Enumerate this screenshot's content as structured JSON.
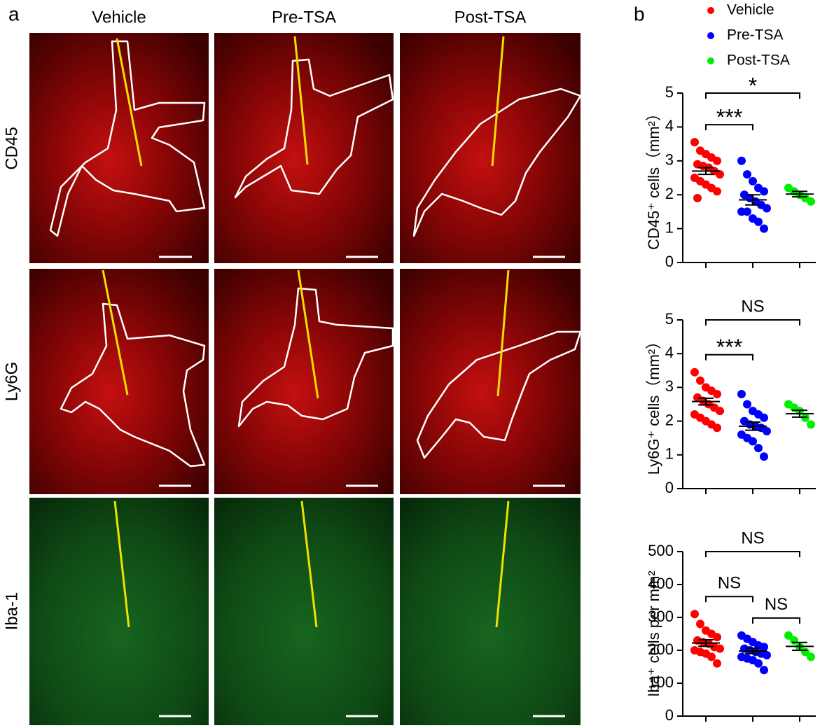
{
  "panel_a": {
    "label": "a",
    "columns": [
      "Vehicle",
      "Pre-TSA",
      "Post-TSA"
    ],
    "rows": [
      "CD45",
      "Ly6G",
      "Iba-1"
    ]
  },
  "panel_b": {
    "label": "b"
  },
  "chart_data": [
    {
      "type": "dotplot",
      "y_label": "CD45⁺ cells（mm²）",
      "ylim": [
        0,
        5
      ],
      "yticks": [
        0,
        1,
        2,
        3,
        4,
        5
      ],
      "series": [
        {
          "name": "Vehicle",
          "color": "#ff0000",
          "values": [
            3.55,
            3.3,
            3.2,
            3.1,
            3.0,
            2.9,
            2.85,
            2.8,
            2.7,
            2.6,
            2.5,
            2.4,
            2.3,
            2.2,
            2.1,
            1.9
          ],
          "mean": 2.7,
          "sem": 0.1
        },
        {
          "name": "Pre-TSA",
          "color": "#0000ff",
          "values": [
            3.0,
            2.6,
            2.4,
            2.2,
            2.1,
            2.0,
            1.9,
            1.8,
            1.7,
            1.6,
            1.5,
            1.5,
            1.3,
            1.2,
            1.0
          ],
          "mean": 1.85,
          "sem": 0.15
        },
        {
          "name": "Post-TSA",
          "color": "#00ee00",
          "values": [
            2.2,
            2.1,
            2.0,
            1.9,
            1.8
          ],
          "mean": 2.02,
          "sem": 0.08
        }
      ],
      "comparisons": [
        {
          "groups": [
            0,
            2
          ],
          "label": "*"
        },
        {
          "groups": [
            0,
            1
          ],
          "label": "***"
        }
      ]
    },
    {
      "type": "dotplot",
      "y_label": "Ly6G⁺ cells（mm²）",
      "ylim": [
        0,
        5
      ],
      "yticks": [
        0,
        1,
        2,
        3,
        4,
        5
      ],
      "series": [
        {
          "color": "#ff0000",
          "values": [
            3.45,
            3.2,
            3.0,
            2.9,
            2.8,
            2.7,
            2.6,
            2.5,
            2.4,
            2.3,
            2.2,
            2.1,
            2.0,
            1.9,
            1.8
          ],
          "mean": 2.58,
          "sem": 0.1
        },
        {
          "color": "#0000ff",
          "values": [
            2.8,
            2.5,
            2.3,
            2.2,
            2.1,
            2.0,
            1.9,
            1.85,
            1.8,
            1.7,
            1.6,
            1.5,
            1.4,
            1.2,
            0.95
          ],
          "mean": 1.85,
          "sem": 0.12
        },
        {
          "color": "#00ee00",
          "values": [
            2.5,
            2.4,
            2.3,
            2.1,
            1.9
          ],
          "mean": 2.22,
          "sem": 0.1
        }
      ],
      "comparisons": [
        {
          "groups": [
            0,
            2
          ],
          "label": "NS"
        },
        {
          "groups": [
            0,
            1
          ],
          "label": "***"
        }
      ]
    },
    {
      "type": "dotplot",
      "y_label": "Iba⁺ cells per mm²",
      "ylim": [
        0,
        500
      ],
      "yticks": [
        0,
        100,
        200,
        300,
        400,
        500
      ],
      "series": [
        {
          "color": "#ff0000",
          "values": [
            310,
            280,
            260,
            250,
            240,
            230,
            225,
            220,
            210,
            205,
            200,
            195,
            190,
            180,
            160
          ],
          "mean": 222,
          "sem": 10
        },
        {
          "color": "#0000ff",
          "values": [
            245,
            235,
            225,
            215,
            210,
            205,
            200,
            195,
            190,
            185,
            180,
            175,
            170,
            160,
            140
          ],
          "mean": 198,
          "sem": 8
        },
        {
          "color": "#00ee00",
          "values": [
            245,
            230,
            210,
            195,
            180
          ],
          "mean": 212,
          "sem": 12
        }
      ],
      "comparisons": [
        {
          "groups": [
            0,
            2
          ],
          "label": "NS"
        },
        {
          "groups": [
            0,
            1
          ],
          "label": "NS"
        },
        {
          "groups": [
            1,
            2
          ],
          "label": "NS"
        }
      ]
    }
  ]
}
